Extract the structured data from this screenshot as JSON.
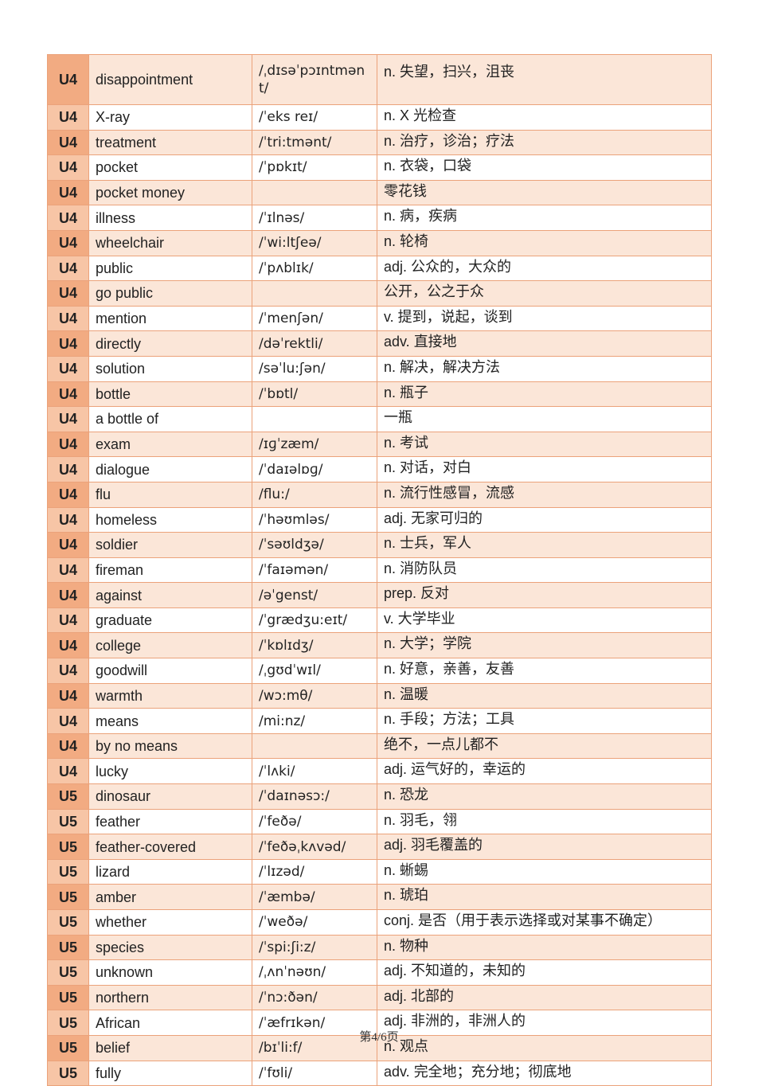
{
  "rows": [
    {
      "unit": "U4",
      "word": "disappointment",
      "phonetic": "/ˌdɪsəˈpɔɪntmənt/",
      "meaning": "n. 失望，扫兴，沮丧"
    },
    {
      "unit": "U4",
      "word": "X-ray",
      "phonetic": "/ˈeks reɪ/",
      "meaning": "n. X 光检查"
    },
    {
      "unit": "U4",
      "word": "treatment",
      "phonetic": "/ˈtri:tmənt/",
      "meaning": "n. 治疗，诊治；疗法"
    },
    {
      "unit": "U4",
      "word": "pocket",
      "phonetic": "/ˈpɒkɪt/",
      "meaning": "n. 衣袋，口袋"
    },
    {
      "unit": "U4",
      "word": "pocket money",
      "phonetic": "",
      "meaning": "零花钱"
    },
    {
      "unit": "U4",
      "word": "illness",
      "phonetic": "/ˈɪlnəs/",
      "meaning": "n. 病，疾病"
    },
    {
      "unit": "U4",
      "word": "wheelchair",
      "phonetic": "/ˈwi:ltʃeə/",
      "meaning": "n. 轮椅"
    },
    {
      "unit": "U4",
      "word": "public",
      "phonetic": "/ˈpʌblɪk/",
      "meaning": "adj. 公众的，大众的"
    },
    {
      "unit": "U4",
      "word": "go public",
      "phonetic": "",
      "meaning": "公开，公之于众"
    },
    {
      "unit": "U4",
      "word": "mention",
      "phonetic": "/ˈmenʃən/",
      "meaning": "v. 提到，说起，谈到"
    },
    {
      "unit": "U4",
      "word": "directly",
      "phonetic": "/dəˈrektli/",
      "meaning": "adv. 直接地"
    },
    {
      "unit": "U4",
      "word": "solution",
      "phonetic": "/səˈlu:ʃən/",
      "meaning": "n. 解决，解决方法"
    },
    {
      "unit": "U4",
      "word": "bottle",
      "phonetic": "/ˈbɒtl/",
      "meaning": "n. 瓶子"
    },
    {
      "unit": "U4",
      "word": "a bottle of",
      "phonetic": "",
      "meaning": "一瓶"
    },
    {
      "unit": "U4",
      "word": "exam",
      "phonetic": "/ɪɡˈzæm/",
      "meaning": "n. 考试"
    },
    {
      "unit": "U4",
      "word": "dialogue",
      "phonetic": "/ˈdaɪəlɒɡ/",
      "meaning": "n. 对话，对白"
    },
    {
      "unit": "U4",
      "word": "flu",
      "phonetic": "/flu:/",
      "meaning": "n. 流行性感冒，流感"
    },
    {
      "unit": "U4",
      "word": "homeless",
      "phonetic": "/ˈhəʊmləs/",
      "meaning": "adj. 无家可归的"
    },
    {
      "unit": "U4",
      "word": "soldier",
      "phonetic": "/ˈsəʊldʒə/",
      "meaning": "n. 士兵，军人"
    },
    {
      "unit": "U4",
      "word": "fireman",
      "phonetic": "/ˈfaɪəmən/",
      "meaning": "n. 消防队员"
    },
    {
      "unit": "U4",
      "word": "against",
      "phonetic": "/əˈgenst/",
      "meaning": "prep. 反对"
    },
    {
      "unit": "U4",
      "word": "graduate",
      "phonetic": "/ˈgrædʒu:eɪt/",
      "meaning": "v. 大学毕业"
    },
    {
      "unit": "U4",
      "word": "college",
      "phonetic": "/ˈkɒlɪdʒ/",
      "meaning": "n. 大学；学院"
    },
    {
      "unit": "U4",
      "word": "goodwill",
      "phonetic": "/ˌgʊdˈwɪl/",
      "meaning": "n. 好意，亲善，友善"
    },
    {
      "unit": "U4",
      "word": "warmth",
      "phonetic": "/wɔ:mθ/",
      "meaning": "n. 温暖"
    },
    {
      "unit": "U4",
      "word": "means",
      "phonetic": "/mi:nz/",
      "meaning": "n. 手段；方法；工具"
    },
    {
      "unit": "U4",
      "word": "by no means",
      "phonetic": "",
      "meaning": "绝不，一点儿都不"
    },
    {
      "unit": "U4",
      "word": "lucky",
      "phonetic": "/ˈlʌki/",
      "meaning": "adj. 运气好的，幸运的"
    },
    {
      "unit": "U5",
      "word": "dinosaur",
      "phonetic": "/ˈdaɪnəsɔ:/",
      "meaning": "n. 恐龙"
    },
    {
      "unit": "U5",
      "word": "feather",
      "phonetic": "/ˈfeðə/",
      "meaning": "n. 羽毛，翎"
    },
    {
      "unit": "U5",
      "word": "feather-covered",
      "phonetic": "/ˈfeðəˌkʌvəd/",
      "meaning": "adj. 羽毛覆盖的"
    },
    {
      "unit": "U5",
      "word": "lizard",
      "phonetic": "/ˈlɪzəd/",
      "meaning": "n. 蜥蜴"
    },
    {
      "unit": "U5",
      "word": "amber",
      "phonetic": "/ˈæmbə/",
      "meaning": "n. 琥珀"
    },
    {
      "unit": "U5",
      "word": "whether",
      "phonetic": "/ˈweðə/",
      "meaning": "conj. 是否（用于表示选择或对某事不确定）"
    },
    {
      "unit": "U5",
      "word": "species",
      "phonetic": "/ˈspi:ʃi:z/",
      "meaning": "n. 物种"
    },
    {
      "unit": "U5",
      "word": "unknown",
      "phonetic": "/ˌʌnˈnəʊn/",
      "meaning": "adj. 不知道的，未知的"
    },
    {
      "unit": "U5",
      "word": "northern",
      "phonetic": "/ˈnɔ:ðən/",
      "meaning": "adj. 北部的"
    },
    {
      "unit": "U5",
      "word": "African",
      "phonetic": "/ˈæfrɪkən/",
      "meaning": "adj. 非洲的，非洲人的"
    },
    {
      "unit": "U5",
      "word": "belief",
      "phonetic": "/bɪˈli:f/",
      "meaning": "n. 观点"
    },
    {
      "unit": "U5",
      "word": "fully",
      "phonetic": "/ˈfʊli/",
      "meaning": "adv. 完全地；充分地；彻底地"
    }
  ],
  "footer": {
    "page_label": "第4/6页"
  },
  "colors": {
    "unit_cell": "#f2ab82",
    "unit_cell_alt": "#f7c5a6",
    "row_shade": "#fbe6d8",
    "border": "#eba27a"
  }
}
